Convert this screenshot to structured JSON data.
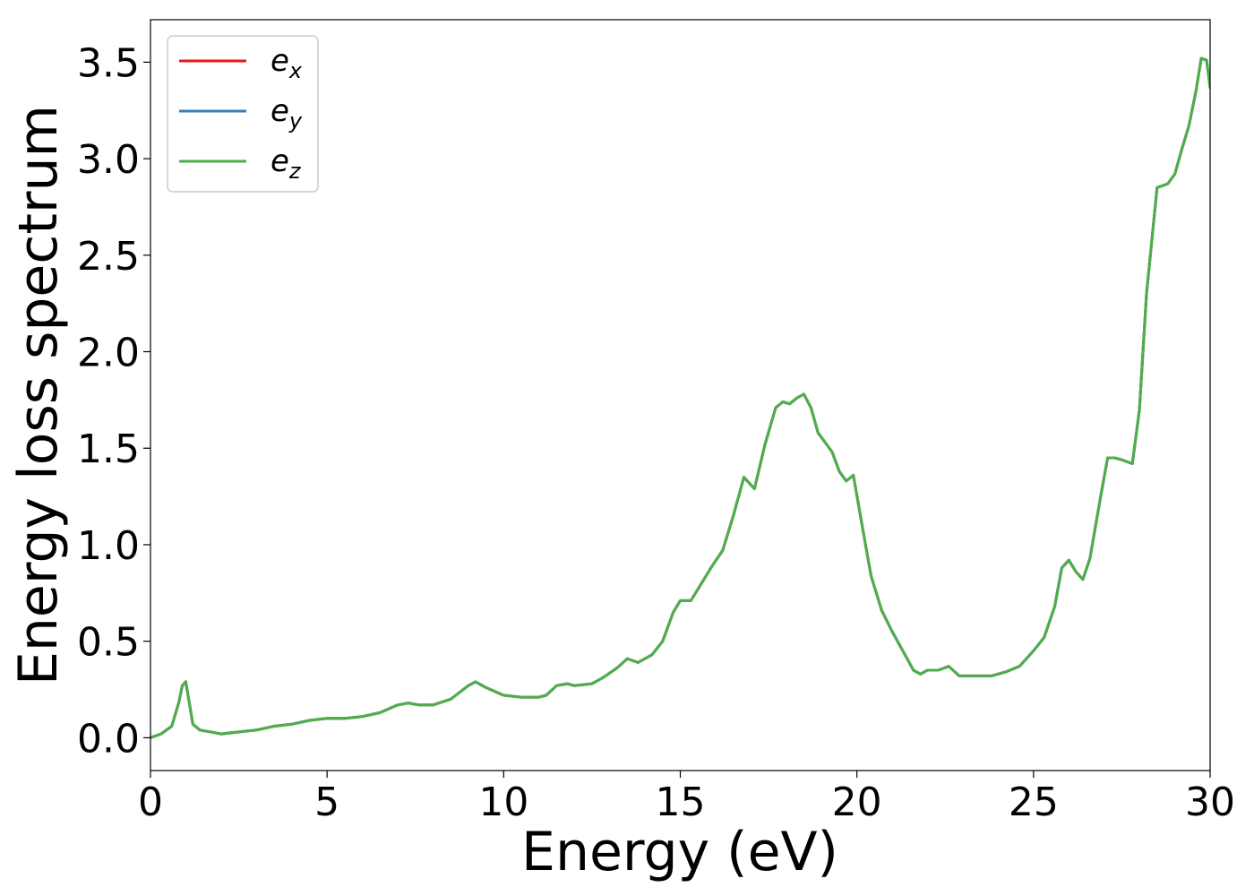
{
  "chart_data": {
    "type": "line",
    "title": "",
    "xlabel": "Energy (eV)",
    "ylabel": "Energy loss spectrum",
    "xlim": [
      0,
      30
    ],
    "ylim": [
      -0.17,
      3.72
    ],
    "xticks": [
      0,
      5,
      10,
      15,
      20,
      25,
      30
    ],
    "xtick_labels": [
      "0",
      "5",
      "10",
      "15",
      "20",
      "25",
      "30"
    ],
    "yticks": [
      0.0,
      0.5,
      1.0,
      1.5,
      2.0,
      2.5,
      3.0,
      3.5
    ],
    "ytick_labels": [
      "0.0",
      "0.5",
      "1.0",
      "1.5",
      "2.0",
      "2.5",
      "3.0",
      "3.5"
    ],
    "grid": false,
    "legend_position": "top-left",
    "series": [
      {
        "name": "e",
        "sub": "x",
        "color": "#e41a1c",
        "x": [
          0.0,
          0.3,
          0.6,
          0.8,
          0.9,
          1.0,
          1.1,
          1.2,
          1.4,
          1.7,
          2.0,
          2.5,
          3.0,
          3.5,
          4.0,
          4.5,
          5.0,
          5.5,
          6.0,
          6.5,
          7.0,
          7.3,
          7.6,
          8.0,
          8.5,
          9.0,
          9.2,
          9.5,
          10.0,
          10.5,
          11.0,
          11.2,
          11.5,
          11.8,
          12.0,
          12.5,
          12.8,
          13.2,
          13.5,
          13.8,
          14.2,
          14.5,
          14.8,
          15.0,
          15.3,
          15.6,
          15.9,
          16.2,
          16.5,
          16.8,
          17.1,
          17.4,
          17.7,
          17.9,
          18.1,
          18.3,
          18.5,
          18.7,
          18.9,
          19.1,
          19.3,
          19.5,
          19.7,
          19.9,
          20.1,
          20.4,
          20.7,
          21.0,
          21.3,
          21.6,
          21.8,
          22.0,
          22.3,
          22.6,
          22.9,
          23.2,
          23.5,
          23.8,
          24.2,
          24.6,
          25.0,
          25.3,
          25.6,
          25.8,
          26.0,
          26.2,
          26.4,
          26.6,
          26.9,
          27.1,
          27.3,
          27.5,
          27.8,
          28.0,
          28.2,
          28.5,
          28.8,
          29.0,
          29.2,
          29.4,
          29.6,
          29.75,
          29.9,
          30.0
        ],
        "y": [
          0.0,
          0.02,
          0.06,
          0.18,
          0.27,
          0.29,
          0.18,
          0.07,
          0.04,
          0.03,
          0.02,
          0.03,
          0.04,
          0.06,
          0.07,
          0.09,
          0.1,
          0.1,
          0.11,
          0.13,
          0.17,
          0.18,
          0.17,
          0.17,
          0.2,
          0.27,
          0.29,
          0.26,
          0.22,
          0.21,
          0.21,
          0.22,
          0.27,
          0.28,
          0.27,
          0.28,
          0.31,
          0.36,
          0.41,
          0.39,
          0.43,
          0.5,
          0.65,
          0.71,
          0.71,
          0.8,
          0.89,
          0.97,
          1.15,
          1.35,
          1.29,
          1.52,
          1.71,
          1.74,
          1.73,
          1.76,
          1.78,
          1.71,
          1.58,
          1.53,
          1.48,
          1.38,
          1.33,
          1.36,
          1.15,
          0.84,
          0.66,
          0.55,
          0.45,
          0.35,
          0.33,
          0.35,
          0.35,
          0.37,
          0.32,
          0.32,
          0.32,
          0.32,
          0.34,
          0.37,
          0.45,
          0.52,
          0.68,
          0.88,
          0.92,
          0.86,
          0.82,
          0.93,
          1.25,
          1.45,
          1.45,
          1.44,
          1.42,
          1.7,
          2.3,
          2.85,
          2.87,
          2.92,
          3.05,
          3.17,
          3.35,
          3.52,
          3.51,
          3.37
        ]
      },
      {
        "name": "e",
        "sub": "y",
        "color": "#377eb8",
        "x": [
          0.0,
          0.3,
          0.6,
          0.8,
          0.9,
          1.0,
          1.1,
          1.2,
          1.4,
          1.7,
          2.0,
          2.5,
          3.0,
          3.5,
          4.0,
          4.5,
          5.0,
          5.5,
          6.0,
          6.5,
          7.0,
          7.3,
          7.6,
          8.0,
          8.5,
          9.0,
          9.2,
          9.5,
          10.0,
          10.5,
          11.0,
          11.2,
          11.5,
          11.8,
          12.0,
          12.5,
          12.8,
          13.2,
          13.5,
          13.8,
          14.2,
          14.5,
          14.8,
          15.0,
          15.3,
          15.6,
          15.9,
          16.2,
          16.5,
          16.8,
          17.1,
          17.4,
          17.7,
          17.9,
          18.1,
          18.3,
          18.5,
          18.7,
          18.9,
          19.1,
          19.3,
          19.5,
          19.7,
          19.9,
          20.1,
          20.4,
          20.7,
          21.0,
          21.3,
          21.6,
          21.8,
          22.0,
          22.3,
          22.6,
          22.9,
          23.2,
          23.5,
          23.8,
          24.2,
          24.6,
          25.0,
          25.3,
          25.6,
          25.8,
          26.0,
          26.2,
          26.4,
          26.6,
          26.9,
          27.1,
          27.3,
          27.5,
          27.8,
          28.0,
          28.2,
          28.5,
          28.8,
          29.0,
          29.2,
          29.4,
          29.6,
          29.75,
          29.9,
          30.0
        ],
        "y": [
          0.0,
          0.02,
          0.06,
          0.18,
          0.27,
          0.29,
          0.18,
          0.07,
          0.04,
          0.03,
          0.02,
          0.03,
          0.04,
          0.06,
          0.07,
          0.09,
          0.1,
          0.1,
          0.11,
          0.13,
          0.17,
          0.18,
          0.17,
          0.17,
          0.2,
          0.27,
          0.29,
          0.26,
          0.22,
          0.21,
          0.21,
          0.22,
          0.27,
          0.28,
          0.27,
          0.28,
          0.31,
          0.36,
          0.41,
          0.39,
          0.43,
          0.5,
          0.65,
          0.71,
          0.71,
          0.8,
          0.89,
          0.97,
          1.15,
          1.35,
          1.29,
          1.52,
          1.71,
          1.74,
          1.73,
          1.76,
          1.78,
          1.71,
          1.58,
          1.53,
          1.48,
          1.38,
          1.33,
          1.36,
          1.15,
          0.84,
          0.66,
          0.55,
          0.45,
          0.35,
          0.33,
          0.35,
          0.35,
          0.37,
          0.32,
          0.32,
          0.32,
          0.32,
          0.34,
          0.37,
          0.45,
          0.52,
          0.68,
          0.88,
          0.92,
          0.86,
          0.82,
          0.93,
          1.25,
          1.45,
          1.45,
          1.44,
          1.42,
          1.7,
          2.3,
          2.85,
          2.87,
          2.92,
          3.05,
          3.17,
          3.35,
          3.52,
          3.51,
          3.37
        ]
      },
      {
        "name": "e",
        "sub": "z",
        "color": "#4daf4a",
        "x": [
          0.0,
          0.3,
          0.6,
          0.8,
          0.9,
          1.0,
          1.1,
          1.2,
          1.4,
          1.7,
          2.0,
          2.5,
          3.0,
          3.5,
          4.0,
          4.5,
          5.0,
          5.5,
          6.0,
          6.5,
          7.0,
          7.3,
          7.6,
          8.0,
          8.5,
          9.0,
          9.2,
          9.5,
          10.0,
          10.5,
          11.0,
          11.2,
          11.5,
          11.8,
          12.0,
          12.5,
          12.8,
          13.2,
          13.5,
          13.8,
          14.2,
          14.5,
          14.8,
          15.0,
          15.3,
          15.6,
          15.9,
          16.2,
          16.5,
          16.8,
          17.1,
          17.4,
          17.7,
          17.9,
          18.1,
          18.3,
          18.5,
          18.7,
          18.9,
          19.1,
          19.3,
          19.5,
          19.7,
          19.9,
          20.1,
          20.4,
          20.7,
          21.0,
          21.3,
          21.6,
          21.8,
          22.0,
          22.3,
          22.6,
          22.9,
          23.2,
          23.5,
          23.8,
          24.2,
          24.6,
          25.0,
          25.3,
          25.6,
          25.8,
          26.0,
          26.2,
          26.4,
          26.6,
          26.9,
          27.1,
          27.3,
          27.5,
          27.8,
          28.0,
          28.2,
          28.5,
          28.8,
          29.0,
          29.2,
          29.4,
          29.6,
          29.75,
          29.9,
          30.0
        ],
        "y": [
          0.0,
          0.02,
          0.06,
          0.18,
          0.27,
          0.29,
          0.18,
          0.07,
          0.04,
          0.03,
          0.02,
          0.03,
          0.04,
          0.06,
          0.07,
          0.09,
          0.1,
          0.1,
          0.11,
          0.13,
          0.17,
          0.18,
          0.17,
          0.17,
          0.2,
          0.27,
          0.29,
          0.26,
          0.22,
          0.21,
          0.21,
          0.22,
          0.27,
          0.28,
          0.27,
          0.28,
          0.31,
          0.36,
          0.41,
          0.39,
          0.43,
          0.5,
          0.65,
          0.71,
          0.71,
          0.8,
          0.89,
          0.97,
          1.15,
          1.35,
          1.29,
          1.52,
          1.71,
          1.74,
          1.73,
          1.76,
          1.78,
          1.71,
          1.58,
          1.53,
          1.48,
          1.38,
          1.33,
          1.36,
          1.15,
          0.84,
          0.66,
          0.55,
          0.45,
          0.35,
          0.33,
          0.35,
          0.35,
          0.37,
          0.32,
          0.32,
          0.32,
          0.32,
          0.34,
          0.37,
          0.45,
          0.52,
          0.68,
          0.88,
          0.92,
          0.86,
          0.82,
          0.93,
          1.25,
          1.45,
          1.45,
          1.44,
          1.42,
          1.7,
          2.3,
          2.85,
          2.87,
          2.92,
          3.05,
          3.17,
          3.35,
          3.52,
          3.51,
          3.37
        ]
      }
    ]
  }
}
